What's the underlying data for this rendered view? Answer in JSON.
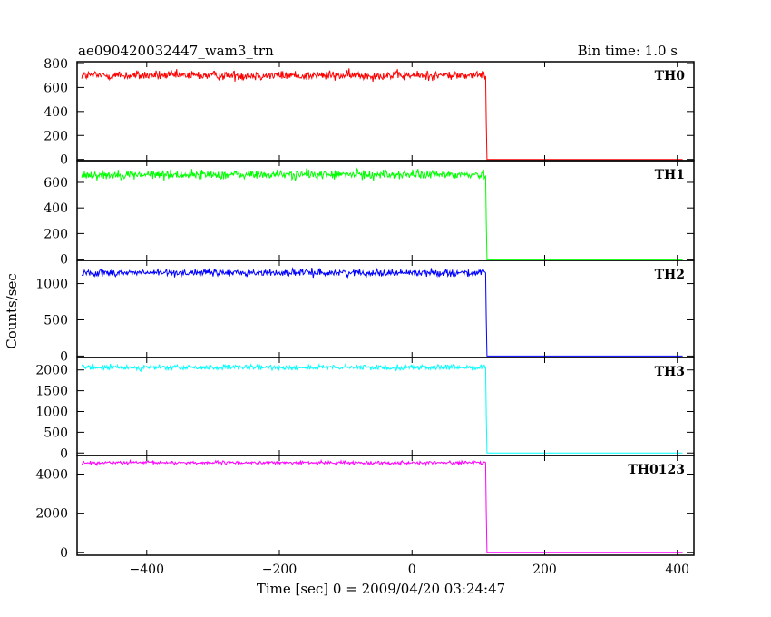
{
  "header": {
    "title": "ae090420032447_wam3_trn",
    "bin_time": "Bin time: 1.0 s"
  },
  "chart_data": {
    "type": "line",
    "xlabel": "Time [sec] 0 = 2009/04/20 03:24:47",
    "ylabel": "Counts/sec",
    "xlim": [
      -505,
      425
    ],
    "x_ticks": [
      -400,
      -200,
      0,
      200,
      400
    ],
    "x_tick_labels": [
      "−400",
      "−200",
      "0",
      "200",
      "400"
    ],
    "grid": false,
    "end_time": 113,
    "panels": [
      {
        "label": "TH0",
        "color": "#ff0000",
        "ylim": [
          -10,
          815
        ],
        "y_ticks": [
          0,
          200,
          400,
          600,
          800
        ],
        "y_tick_labels": [
          "0",
          "200",
          "400",
          "600",
          "800"
        ],
        "pre_level": 700,
        "post_level": 0,
        "noise": 28
      },
      {
        "label": "TH1",
        "color": "#00ff00",
        "ylim": [
          -10,
          770
        ],
        "y_ticks": [
          0,
          200,
          400,
          600
        ],
        "y_tick_labels": [
          "0",
          "200",
          "400",
          "600"
        ],
        "pre_level": 660,
        "post_level": 0,
        "noise": 26
      },
      {
        "label": "TH2",
        "color": "#0000ff",
        "ylim": [
          -20,
          1320
        ],
        "y_ticks": [
          0,
          500,
          1000
        ],
        "y_tick_labels": [
          "0",
          "500",
          "1000"
        ],
        "pre_level": 1150,
        "post_level": 0,
        "noise": 35
      },
      {
        "label": "TH3",
        "color": "#00ffff",
        "ylim": [
          -60,
          2300
        ],
        "y_ticks": [
          0,
          500,
          1000,
          1500,
          2000
        ],
        "y_tick_labels": [
          "0",
          "500",
          "1000",
          "1500",
          "2000"
        ],
        "pre_level": 2060,
        "post_level": 0,
        "noise": 45
      },
      {
        "label": "TH0123",
        "color": "#ff00ff",
        "ylim": [
          -150,
          4950
        ],
        "y_ticks": [
          0,
          2000,
          4000
        ],
        "y_tick_labels": [
          "0",
          "2000",
          "4000"
        ],
        "pre_level": 4580,
        "post_level": 0,
        "noise": 60
      }
    ]
  }
}
